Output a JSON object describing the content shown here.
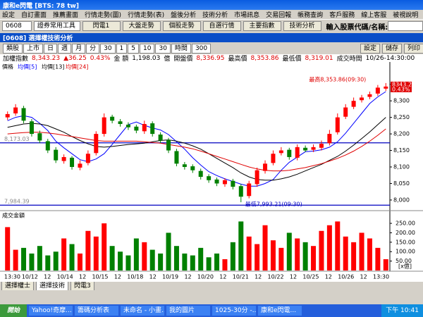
{
  "window": {
    "title": "康和e閃電 [BTS: 78 tw]"
  },
  "menu": [
    "設定",
    "自訂畫面",
    "推薦畫面",
    "行情走勢(圖)",
    "行情走勢(表)",
    "盤後分析",
    "技術分析",
    "市場訊息",
    "交易回報",
    "帳務查詢",
    "客戶服務",
    "線上客服",
    "被視說明"
  ],
  "toolbar": {
    "code": "0608",
    "tools": "證券常用工具",
    "buttons": [
      "閃電1",
      "大盤走勢",
      "個股走勢",
      "自選行情",
      "主要指數",
      "技術分析"
    ],
    "search_label": "輸入股票代碼/名稱:"
  },
  "panel": {
    "title": "[0608] 選擇權技術分析",
    "controls": [
      "類股",
      "上市",
      "日",
      "週",
      "月",
      "分",
      "30",
      "1",
      "5",
      "10",
      "30",
      "時間",
      "300"
    ],
    "actions": [
      "設定",
      "儲存",
      "列印"
    ]
  },
  "quote": [
    {
      "text": "加權指數",
      "color": "#000"
    },
    {
      "text": "8,343.23",
      "color": "#e00000"
    },
    {
      "text": "▲36.25",
      "color": "#e00000"
    },
    {
      "text": "0.43%",
      "color": "#e00000"
    },
    {
      "text": "金 額",
      "color": "#000"
    },
    {
      "text": "1,198.03",
      "color": "#000"
    },
    {
      "text": "億",
      "color": "#000"
    },
    {
      "text": "開盤價",
      "color": "#000"
    },
    {
      "text": "8,336.95",
      "color": "#e00000"
    },
    {
      "text": "最高價",
      "color": "#000"
    },
    {
      "text": "8,353.86",
      "color": "#e00000"
    },
    {
      "text": "最低價",
      "color": "#000"
    },
    {
      "text": "8,319.01",
      "color": "#e00000"
    },
    {
      "text": "成交時間",
      "color": "#000"
    },
    {
      "text": "10/26-14:30:00",
      "color": "#000"
    }
  ],
  "chart_data": {
    "type": "candlestick",
    "price_label": "價格",
    "open": [
      8250,
      8262,
      8278,
      8238,
      8202,
      8178,
      8152,
      8118,
      8128,
      8098,
      8112,
      8142,
      8200,
      8252,
      8238,
      8228,
      8222,
      8208,
      8232,
      8198,
      8182,
      8148,
      8108,
      8102,
      8088,
      8072,
      8062,
      8048,
      8058,
      8042,
      8012,
      8048,
      8088,
      8112,
      8142,
      8152,
      8128,
      8158,
      8152,
      8158,
      8172,
      8205,
      8252,
      8282,
      8302,
      8312,
      8322,
      8336.95
    ],
    "high": [
      8268,
      8290,
      8285,
      8245,
      8210,
      8185,
      8160,
      8138,
      8133,
      8120,
      8150,
      8208,
      8262,
      8258,
      8245,
      8235,
      8228,
      8240,
      8238,
      8205,
      8188,
      8155,
      8115,
      8108,
      8095,
      8078,
      8068,
      8066,
      8064,
      8048,
      8058,
      8098,
      8120,
      8150,
      8160,
      8158,
      8168,
      8165,
      8168,
      8180,
      8212,
      8262,
      8290,
      8310,
      8318,
      8328,
      8348,
      8353.86
    ],
    "low": [
      8242,
      8255,
      8232,
      8192,
      8172,
      8142,
      8112,
      8110,
      8092,
      8090,
      8105,
      8135,
      8192,
      8232,
      8222,
      8212,
      8202,
      8200,
      8192,
      8172,
      8142,
      8102,
      8092,
      8082,
      8062,
      8052,
      8042,
      8040,
      8032,
      7993.21,
      8005,
      8040,
      8080,
      8105,
      8135,
      8122,
      8120,
      8145,
      8145,
      8150,
      8165,
      8198,
      8245,
      8275,
      8295,
      8305,
      8315,
      8330
    ],
    "close": [
      8260,
      8280,
      8240,
      8200,
      8180,
      8150,
      8120,
      8130,
      8100,
      8110,
      8140,
      8200,
      8250,
      8240,
      8230,
      8220,
      8210,
      8230,
      8200,
      8180,
      8150,
      8110,
      8100,
      8090,
      8070,
      8060,
      8050,
      8060,
      8040,
      8010,
      8050,
      8090,
      8110,
      8140,
      8150,
      8130,
      8160,
      8150,
      8160,
      8170,
      8200,
      8250,
      8280,
      8300,
      8310,
      8320,
      8340,
      8343.23
    ],
    "volume": [
      230,
      110,
      120,
      90,
      130,
      80,
      100,
      170,
      140,
      90,
      210,
      180,
      250,
      130,
      100,
      80,
      170,
      150,
      110,
      90,
      200,
      130,
      90,
      80,
      120,
      70,
      90,
      60,
      150,
      260,
      180,
      140,
      240,
      160,
      120,
      200,
      170,
      150,
      130,
      210,
      240,
      260,
      180,
      150,
      200,
      170,
      120,
      60
    ],
    "ma": [
      {
        "name": "均價[5]",
        "color": "#0000ff",
        "values": [
          8240,
          8250,
          8255,
          8250,
          8232,
          8210,
          8178,
          8158,
          8140,
          8122,
          8116,
          8124,
          8140,
          8168,
          8198,
          8228,
          8236,
          8226,
          8218,
          8212,
          8198,
          8176,
          8154,
          8128,
          8106,
          8086,
          8074,
          8064,
          8056,
          8048,
          8042,
          8042,
          8050,
          8062,
          8090,
          8114,
          8130,
          8146,
          8148,
          8152,
          8160,
          8176,
          8202,
          8232,
          8262,
          8292,
          8312,
          8328
        ]
      },
      {
        "name": "均價[13]",
        "color": "#000000",
        "values": [
          8220,
          8225,
          8230,
          8232,
          8230,
          8225,
          8215,
          8205,
          8192,
          8180,
          8170,
          8162,
          8160,
          8162,
          8165,
          8168,
          8170,
          8172,
          8176,
          8180,
          8182,
          8178,
          8172,
          8164,
          8154,
          8140,
          8126,
          8112,
          8098,
          8082,
          8070,
          8062,
          8060,
          8060,
          8064,
          8070,
          8078,
          8088,
          8098,
          8108,
          8120,
          8132,
          8148,
          8166,
          8186,
          8206,
          8228,
          8250
        ]
      },
      {
        "name": "均價[24]",
        "color": "#e00000",
        "values": [
          8200,
          8202,
          8204,
          8205,
          8205,
          8203,
          8200,
          8196,
          8192,
          8188,
          8184,
          8180,
          8178,
          8178,
          8178,
          8178,
          8178,
          8176,
          8174,
          8172,
          8168,
          8164,
          8160,
          8155,
          8148,
          8140,
          8132,
          8124,
          8116,
          8108,
          8100,
          8094,
          8090,
          8088,
          8088,
          8090,
          8094,
          8098,
          8104,
          8110,
          8118,
          8126,
          8136,
          8148,
          8162,
          8178,
          8196,
          8215
        ]
      }
    ],
    "up_color": "#ff0000",
    "down_color": "#008000",
    "ylim": [
      7970,
      8392
    ],
    "yticks": [
      {
        "value": 8000,
        "label": "8,000"
      },
      {
        "value": 8050,
        "label": "8,050"
      },
      {
        "value": 8100,
        "label": "8,100"
      },
      {
        "value": 8150,
        "label": "8,150"
      },
      {
        "value": 8200,
        "label": "8,200"
      },
      {
        "value": 8250,
        "label": "8,250"
      },
      {
        "value": 8300,
        "label": "8,300"
      },
      {
        "value": 8350,
        "label": "8,350"
      }
    ],
    "hlines": [
      {
        "value": 8173.03,
        "label": "8,173.03",
        "color": "#0000c0"
      },
      {
        "value": 7984.39,
        "label": "7,984.39",
        "color": "#0000c0"
      }
    ],
    "annotations": {
      "high": "最高8,353.86(09:30)",
      "low": "最低7,993.21(09:30)"
    },
    "last_box": {
      "value": 8343.23,
      "label": "8343.23",
      "pct": "0.43%"
    },
    "volume_label": "成交金額",
    "volume_unit": "[x億]",
    "volume_ylim": [
      0,
      310
    ],
    "volume_yticks": [
      {
        "value": 50,
        "label": "50.00"
      },
      {
        "value": 100,
        "label": "100.00"
      },
      {
        "value": 150,
        "label": "150.00"
      },
      {
        "value": 200,
        "label": "200.00"
      },
      {
        "value": 250,
        "label": "250.00"
      }
    ],
    "x_labels": [
      "13:30",
      "10/12",
      "12",
      "10/14",
      "12",
      "10/15",
      "12",
      "10/18",
      "12",
      "10/19",
      "12",
      "10/20",
      "12",
      "10/21",
      "12",
      "10/22",
      "12",
      "10/25",
      "12",
      "10/26",
      "12",
      "13:30"
    ]
  },
  "tabs": [
    "選擇權士",
    "選擇技術",
    "閃電3"
  ],
  "taskbar": {
    "start": "開始",
    "items": [
      "Yahoo!奇摩...",
      "籌碼分析表",
      "未命名 - 小畫...",
      "我的圖片",
      "1025-30分 -...",
      "康和e閃電..."
    ],
    "clock": "下午 10:41"
  }
}
